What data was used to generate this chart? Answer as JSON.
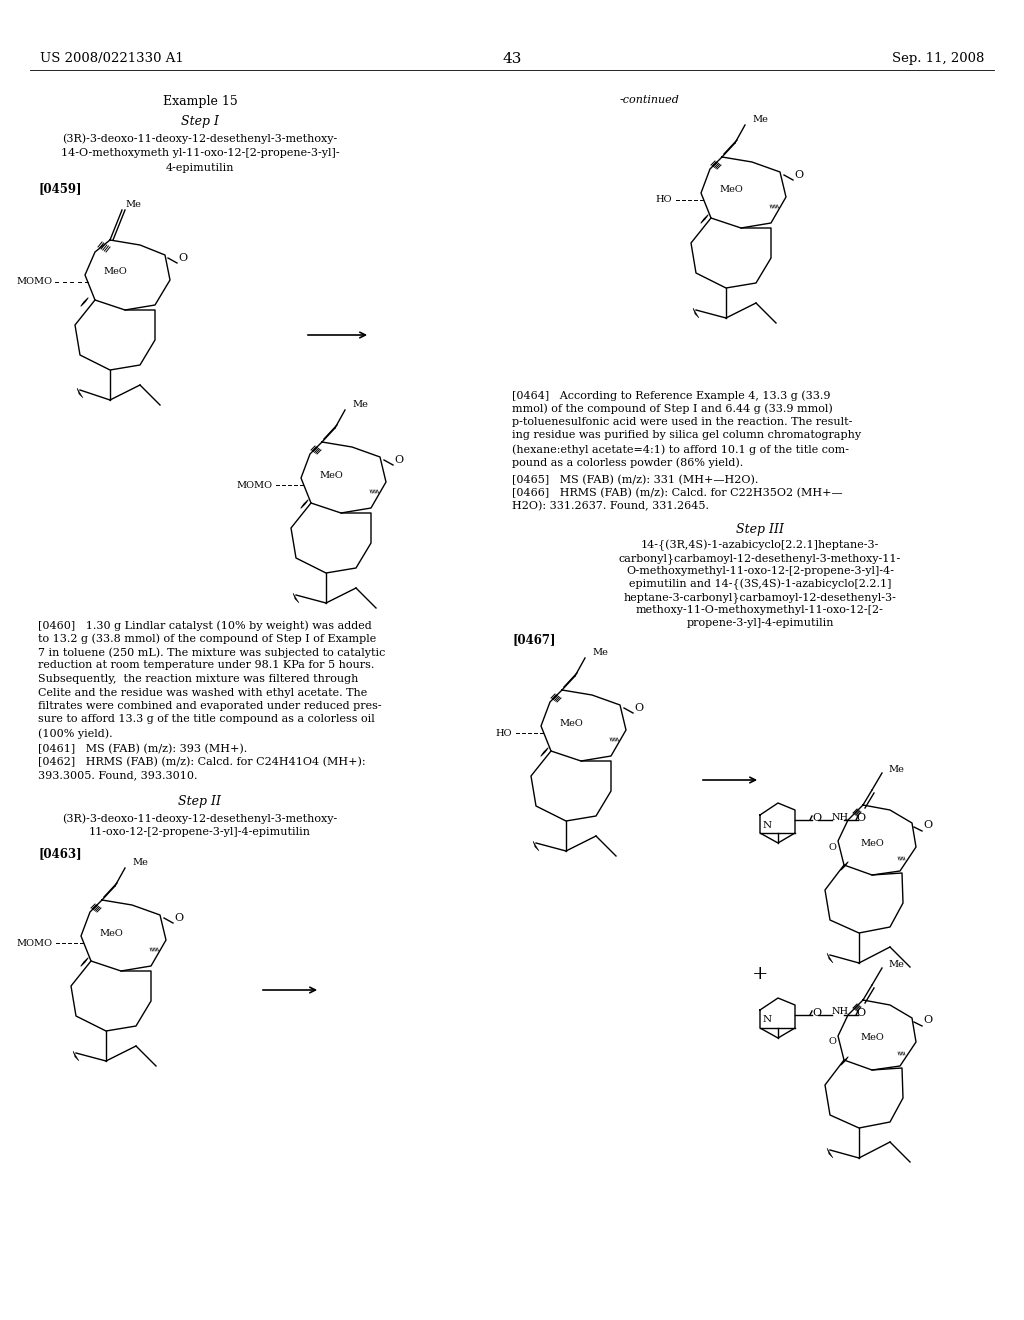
{
  "page_number": "43",
  "left_header": "US 2008/0221330 A1",
  "right_header": "Sep. 11, 2008",
  "background_color": "#ffffff",
  "text_color": "#000000",
  "content": {
    "example_label": "Example 15",
    "step1_label": "Step I",
    "step1_title_line1": "(3R)-3-deoxo-11-deoxy-12-desethenyl-3-methoxy-",
    "step1_title_line2": "14-O-methoxymeth yl-11-oxo-12-[2-propene-3-yl]-",
    "step1_title_line3": "4-epimutilin",
    "ref0459": "[0459]",
    "continued_label": "-continued",
    "ref0460_lines": [
      "[0460]   1.30 g Lindlar catalyst (10% by weight) was added",
      "to 13.2 g (33.8 mmol) of the compound of Step I of Example",
      "7 in toluene (250 mL). The mixture was subjected to catalytic",
      "reduction at room temperature under 98.1 KPa for 5 hours.",
      "Subsequently,  the reaction mixture was filtered through",
      "Celite and the residue was washed with ethyl acetate. The",
      "filtrates were combined and evaporated under reduced pres-",
      "sure to afford 13.3 g of the title compound as a colorless oil",
      "(100% yield)."
    ],
    "ref0461": "[0461]   MS (FAB) (m/z): 393 (MH+).",
    "ref0462_line1": "[0462]   HRMS (FAB) (m/z): Calcd. for C24H41O4 (MH+):",
    "ref0462_line2": "393.3005. Found, 393.3010.",
    "step2_label": "Step II",
    "step2_title_line1": "(3R)-3-deoxo-11-deoxy-12-desethenyl-3-methoxy-",
    "step2_title_line2": "11-oxo-12-[2-propene-3-yl]-4-epimutilin",
    "ref0463": "[0463]",
    "ref0464_lines": [
      "[0464]   According to Reference Example 4, 13.3 g (33.9",
      "mmol) of the compound of Step I and 6.44 g (33.9 mmol)",
      "p-toluenesulfonic acid were used in the reaction. The result-",
      "ing residue was purified by silica gel column chromatography",
      "(hexane:ethyl acetate=4:1) to afford 10.1 g of the title com-",
      "pound as a colorless powder (86% yield)."
    ],
    "ref0465": "[0465]   MS (FAB) (m/z): 331 (MH+—H2O).",
    "ref0466_line1": "[0466]   HRMS (FAB) (m/z): Calcd. for C22H35O2 (MH+—",
    "ref0466_line2": "H2O): 331.2637. Found, 331.2645.",
    "step3_label": "Step III",
    "step3_title_lines": [
      "14-{(3R,4S)-1-azabicyclo[2.2.1]heptane-3-",
      "carbonyl}carbamoyl-12-desethenyl-3-methoxy-11-",
      "O-methoxymethyl-11-oxo-12-[2-propene-3-yl]-4-",
      "epimutilin and 14-{(3S,4S)-1-azabicyclo[2.2.1]",
      "heptane-3-carbonyl}carbamoyl-12-desethenyl-3-",
      "methoxy-11-O-methoxymethyl-11-oxo-12-[2-",
      "propene-3-yl]-4-epimutilin"
    ],
    "ref0467": "[0467]"
  }
}
